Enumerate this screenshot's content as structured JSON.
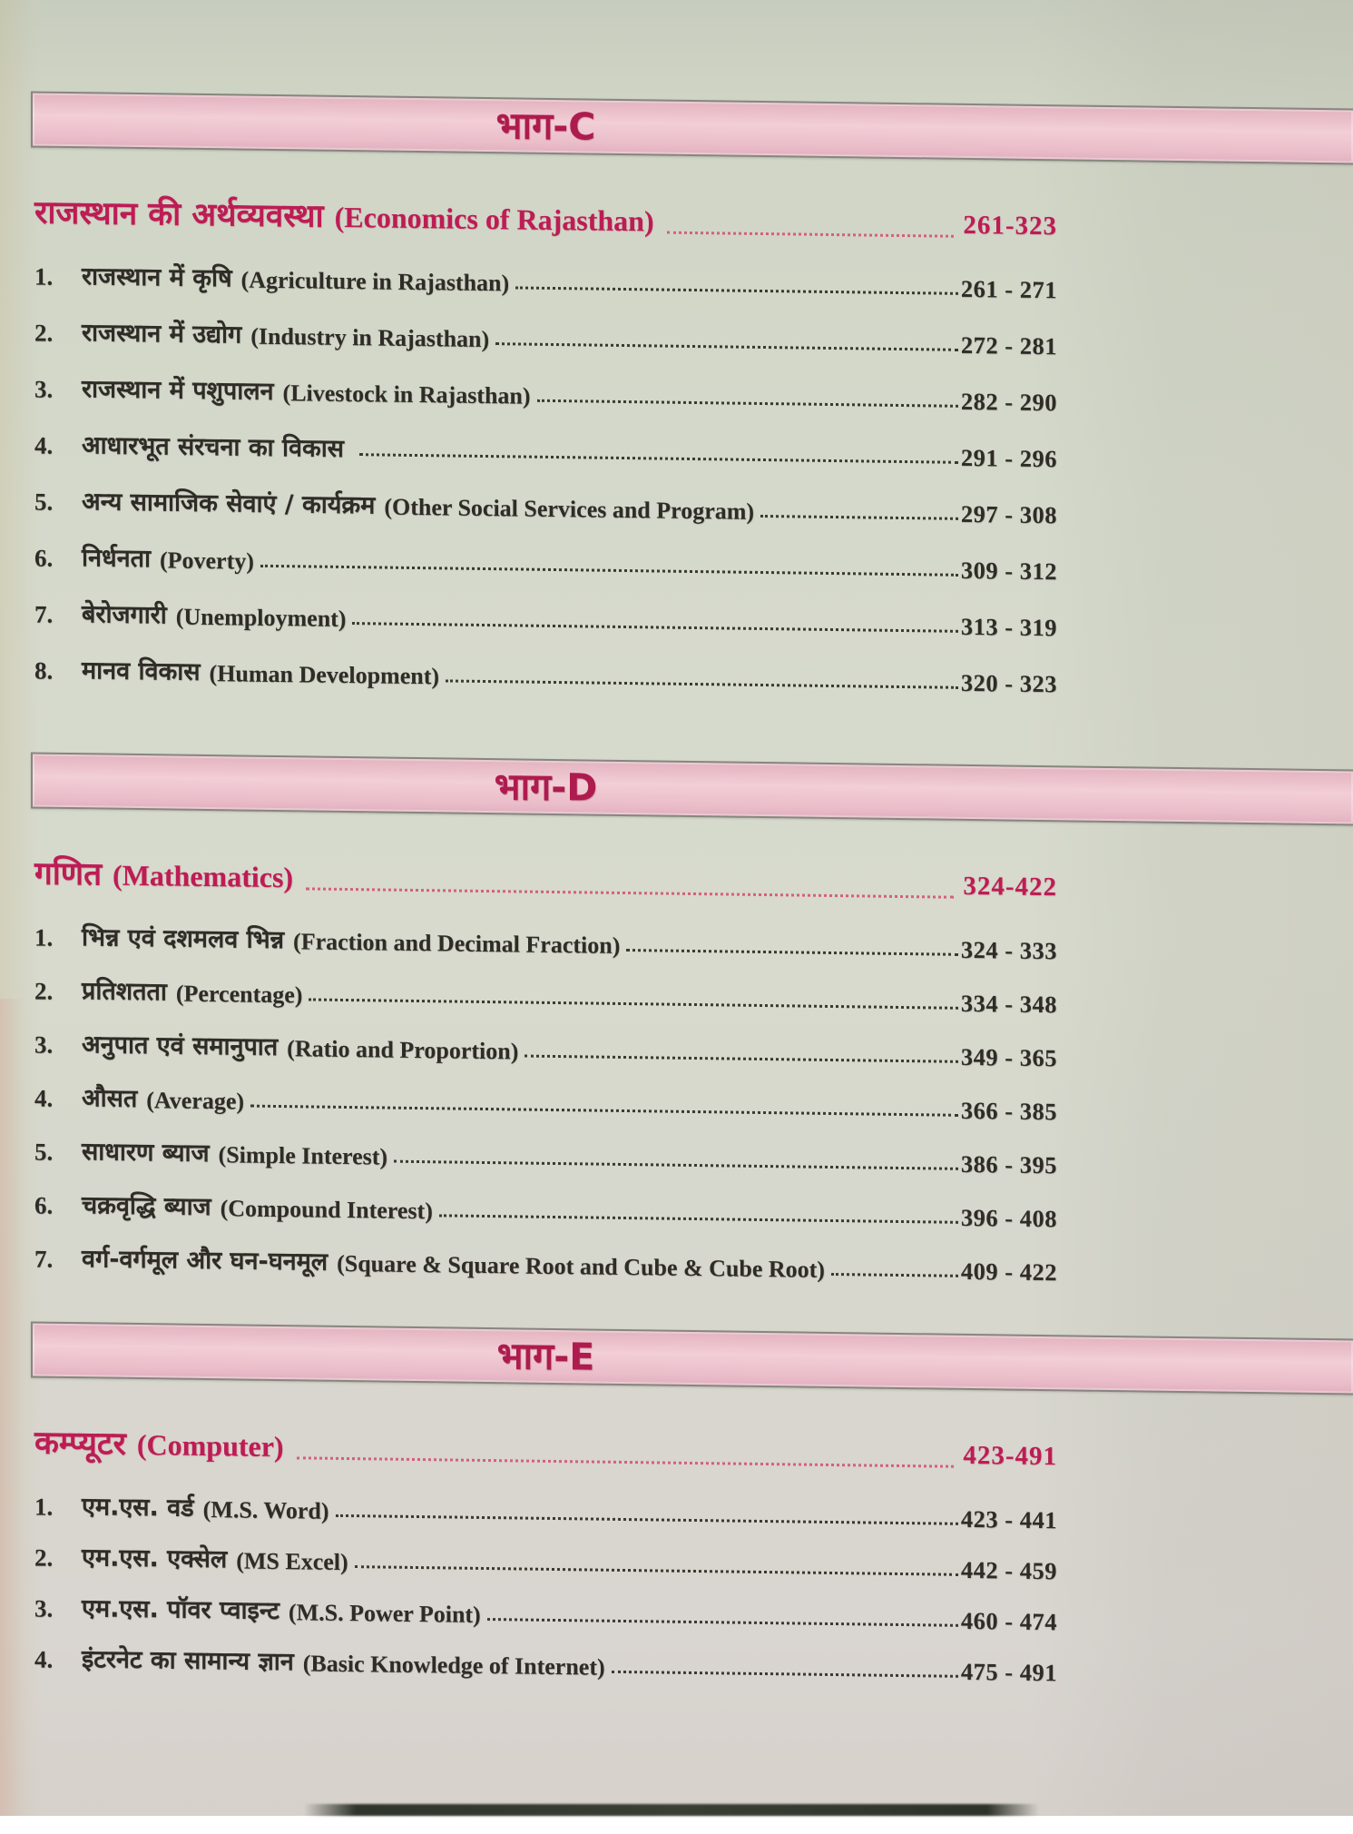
{
  "document": {
    "kind": "book-table-of-contents-scan",
    "accent_color": "#bd1c55",
    "banner_fill": "#f0c9d2",
    "paper_color": "#d6dacd",
    "text_color": "#2f2c27"
  },
  "parts": [
    {
      "banner": "भाग-C",
      "title_hindi": "राजस्थान की अर्थव्यवस्था",
      "title_english": "(Economics of Rajasthan)",
      "page_range": "261-323",
      "items": [
        {
          "no": "1.",
          "hindi": "राजस्थान में कृषि",
          "english": "(Agriculture in Rajasthan)",
          "pages": "261 - 271"
        },
        {
          "no": "2.",
          "hindi": "राजस्थान में उद्योग",
          "english": "(Industry in Rajasthan)",
          "pages": "272 - 281"
        },
        {
          "no": "3.",
          "hindi": "राजस्थान में पशुपालन",
          "english": "(Livestock in Rajasthan)",
          "pages": "282 - 290"
        },
        {
          "no": "4.",
          "hindi": "आधारभूत संरचना का विकास",
          "english": "",
          "pages": "291 - 296"
        },
        {
          "no": "5.",
          "hindi": "अन्य सामाजिक सेवाएं / कार्यक्रम",
          "english": "(Other Social Services and Program)",
          "pages": "297 - 308"
        },
        {
          "no": "6.",
          "hindi": "निर्धनता",
          "english": "(Poverty)",
          "pages": "309 - 312"
        },
        {
          "no": "7.",
          "hindi": "बेरोजगारी",
          "english": "(Unemployment)",
          "pages": "313 - 319"
        },
        {
          "no": "8.",
          "hindi": "मानव विकास",
          "english": "(Human Development)",
          "pages": "320 - 323"
        }
      ]
    },
    {
      "banner": "भाग-D",
      "title_hindi": "गणित",
      "title_english": "(Mathematics)",
      "page_range": "324-422",
      "items": [
        {
          "no": "1.",
          "hindi": "भिन्न एवं दशमलव भिन्न",
          "english": "(Fraction and Decimal Fraction)",
          "pages": "324 - 333"
        },
        {
          "no": "2.",
          "hindi": "प्रतिशतता",
          "english": "(Percentage)",
          "pages": "334 - 348"
        },
        {
          "no": "3.",
          "hindi": "अनुपात एवं समानुपात",
          "english": "(Ratio and Proportion)",
          "pages": "349 - 365"
        },
        {
          "no": "4.",
          "hindi": "औसत",
          "english": "(Average)",
          "pages": "366 - 385"
        },
        {
          "no": "5.",
          "hindi": "साधारण ब्याज",
          "english": "(Simple Interest)",
          "pages": "386 - 395"
        },
        {
          "no": "6.",
          "hindi": "चक्रवृद्धि ब्याज",
          "english": "(Compound Interest)",
          "pages": "396 - 408"
        },
        {
          "no": "7.",
          "hindi": "वर्ग-वर्गमूल और घन-घनमूल",
          "english": "(Square & Square Root and Cube & Cube Root)",
          "pages": "409 - 422"
        }
      ]
    },
    {
      "banner": "भाग-E",
      "title_hindi": "कम्प्यूटर",
      "title_english": "(Computer)",
      "page_range": "423-491",
      "items": [
        {
          "no": "1.",
          "hindi": "एम.एस. वर्ड",
          "english": "(M.S. Word)",
          "pages": "423 - 441"
        },
        {
          "no": "2.",
          "hindi": "एम.एस. एक्सेल",
          "english": "(MS Excel)",
          "pages": "442 - 459"
        },
        {
          "no": "3.",
          "hindi": "एम.एस. पॉवर प्वाइन्ट",
          "english": "(M.S. Power Point)",
          "pages": "460 - 474"
        },
        {
          "no": "4.",
          "hindi": "इंटरनेट का सामान्य ज्ञान",
          "english": "(Basic Knowledge of Internet)",
          "pages": "475 - 491"
        }
      ]
    }
  ]
}
